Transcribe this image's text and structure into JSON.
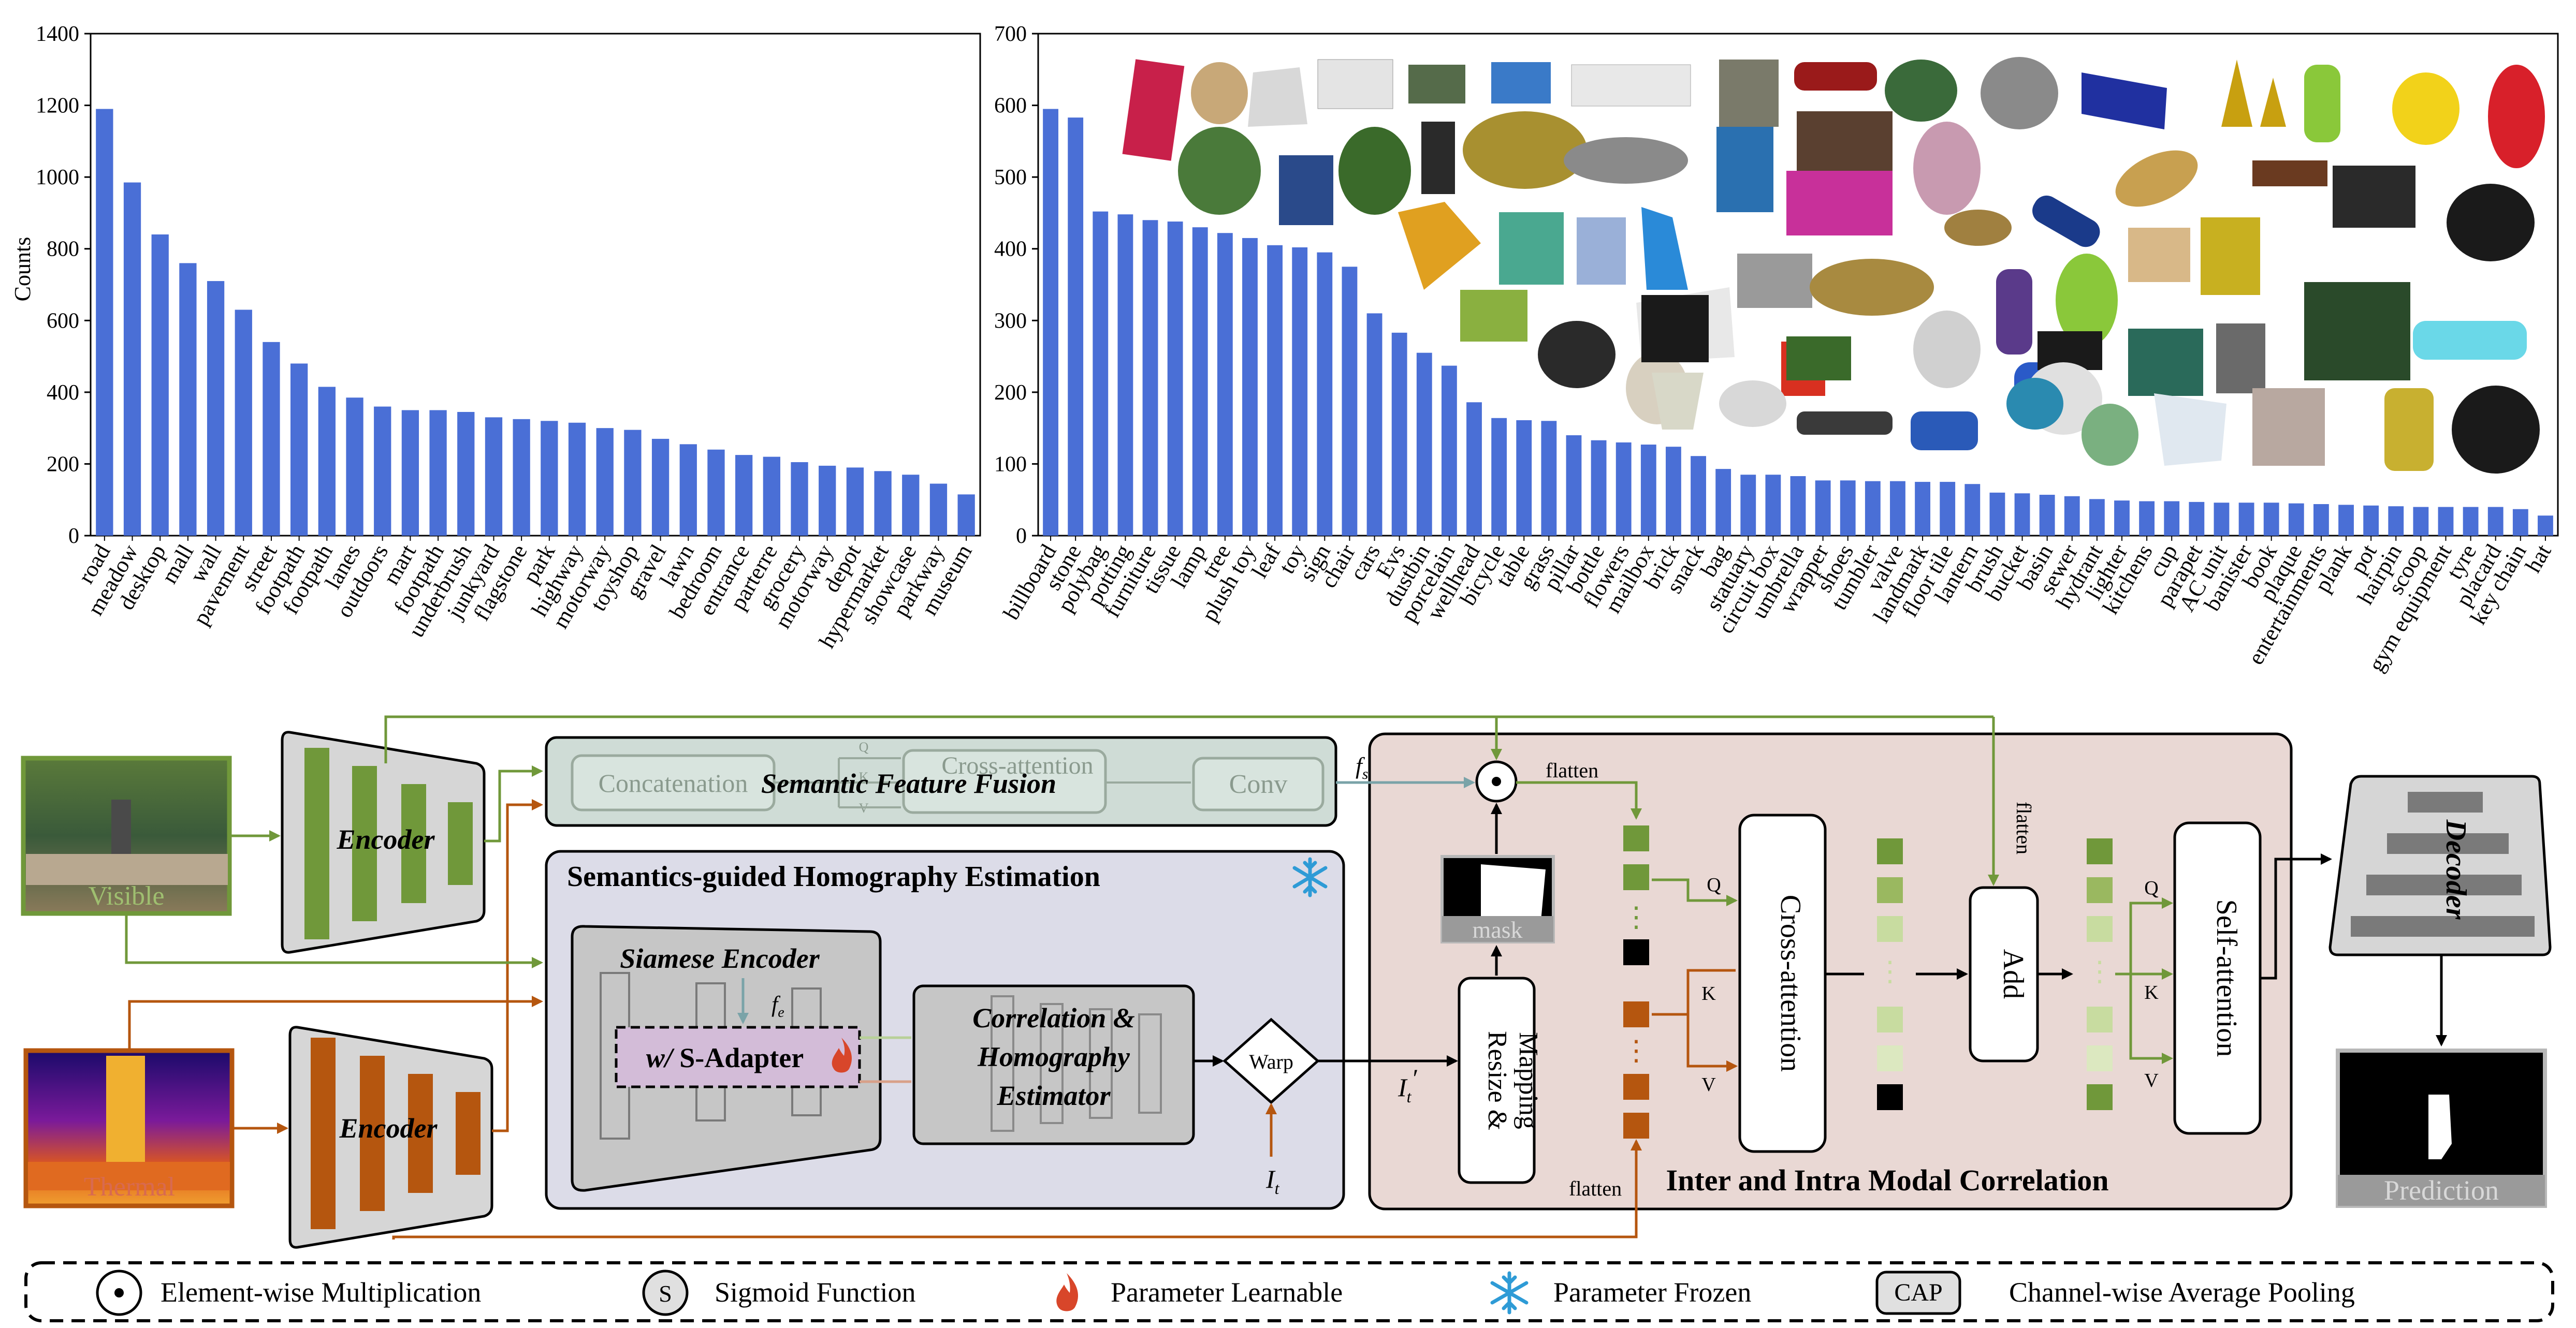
{
  "charts": [
    {
      "type": "bar",
      "title": "",
      "xlabel": "",
      "ylabel": "Counts",
      "ylim": [
        0,
        1400
      ],
      "yticks": [
        0,
        200,
        400,
        600,
        800,
        1000,
        1200,
        1400
      ],
      "categories": [
        "road",
        "meadow",
        "desktop",
        "mall",
        "wall",
        "pavement",
        "street",
        "footpath",
        "footpath",
        "lanes",
        "outdoors",
        "mart",
        "footpath",
        "underbrush",
        "junkyard",
        "flagstone",
        "park",
        "highway",
        "motorway",
        "toyshop",
        "gravel",
        "lawn",
        "bedroom",
        "entrance",
        "parterre",
        "grocery",
        "motorway",
        "depot",
        "hypermarket",
        "showcase",
        "parkway",
        "museum"
      ],
      "values": [
        1190,
        985,
        840,
        760,
        710,
        630,
        540,
        480,
        415,
        385,
        360,
        350,
        350,
        345,
        330,
        325,
        320,
        315,
        300,
        295,
        270,
        255,
        240,
        225,
        220,
        205,
        195,
        190,
        180,
        170,
        145,
        115
      ],
      "color": "#4a6fd6"
    },
    {
      "type": "bar",
      "title": "",
      "xlabel": "",
      "ylabel": "",
      "ylim": [
        0,
        700
      ],
      "yticks": [
        0,
        100,
        200,
        300,
        400,
        500,
        600,
        700
      ],
      "categories": [
        "billboard",
        "stone",
        "polybag",
        "potting",
        "furniture",
        "tissue",
        "lamp",
        "tree",
        "plush toy",
        "leaf",
        "toy",
        "sign",
        "chair",
        "cars",
        "Evs",
        "dustbin",
        "porcelain",
        "wellhead",
        "bicycle",
        "table",
        "grass",
        "pillar",
        "bottle",
        "flowers",
        "mailbox",
        "brick",
        "snack",
        "bag",
        "statuary",
        "circuit box",
        "umbrella",
        "wrapper",
        "shoes",
        "tumbler",
        "valve",
        "landmark",
        "floor tile",
        "lantern",
        "brush",
        "bucket",
        "basin",
        "sewer",
        "hydrant",
        "lighter",
        "kitchens",
        "cup",
        "parapet",
        "AC unit",
        "banister",
        "book",
        "plaque",
        "entertainments",
        "plank",
        "pot",
        "hairpin",
        "scoop",
        "gym equipment",
        "tyre",
        "placard",
        "key chain",
        "hat"
      ],
      "values": [
        595,
        583,
        452,
        448,
        440,
        438,
        430,
        422,
        415,
        405,
        402,
        395,
        375,
        310,
        283,
        255,
        237,
        186,
        164,
        161,
        160,
        140,
        133,
        130,
        127,
        124,
        111,
        93,
        85,
        85,
        83,
        77,
        77,
        76,
        76,
        75,
        75,
        72,
        60,
        59,
        57,
        55,
        51,
        49,
        48,
        48,
        47,
        46,
        46,
        46,
        45,
        44,
        43,
        42,
        41,
        40,
        40,
        40,
        40,
        37,
        28
      ],
      "color": "#4a6fd6"
    }
  ],
  "diagram": {
    "inputs": {
      "visible": "Visible",
      "thermal": "Thermal"
    },
    "encoder": "Encoder",
    "sff": {
      "title": "Semantic Feature Fusion",
      "concat": "Concatenation",
      "cross": "Cross-attention",
      "conv": "Conv",
      "q": "Q",
      "k": "K",
      "v": "V",
      "fs_main": "f",
      "fs_sub": "s"
    },
    "she": {
      "title": "Semantics-guided Homography Estimation",
      "siamese": "Siamese Encoder",
      "adapter_prefix": "w/",
      "adapter": "S-Adapter",
      "fe_main": "f",
      "fe_sub": "e",
      "corr_line1": "Correlation &",
      "corr_line2": "Homography",
      "corr_line3": "Estimator",
      "warp": "Warp",
      "it_main": "I",
      "it_sub": "t",
      "itp_main": "I",
      "itp_sub": "t",
      "itp_prime": "′"
    },
    "iimc": {
      "title": "Inter and Intra Modal Correlation",
      "mask": "mask",
      "resize1": "Resize &",
      "resize2": "Mapping",
      "flatten": "flatten",
      "cross": "Cross-attention",
      "add": "Add",
      "self": "Self-attention",
      "q": "Q",
      "k": "K",
      "v": "V",
      "dots": "⋮"
    },
    "decoder": "Decoder",
    "prediction": "Prediction"
  },
  "legend": [
    {
      "symbol": "⊙",
      "label": "Element-wise Multiplication"
    },
    {
      "symbol": "S",
      "label": "Sigmoid Function"
    },
    {
      "symbol": "fire-icon",
      "label": "Parameter Learnable"
    },
    {
      "symbol": "snowflake-icon",
      "label": "Parameter Frozen"
    },
    {
      "symbol": "CAP",
      "label": "Channel-wise Average Pooling"
    }
  ],
  "colors": {
    "bar": "#4a6fd6",
    "visible": "#70983a",
    "thermal": "#b5560f",
    "she_bg": "#dcdce8",
    "iimc_bg": "#e9d8d4",
    "sff_bg": "#cfdcd6",
    "gray_box": "#cfcfcf",
    "q_dark": "#70983a",
    "q_light": "#c8dca0",
    "frozen": "#2e9bd6",
    "learnable": "#d8462a"
  }
}
